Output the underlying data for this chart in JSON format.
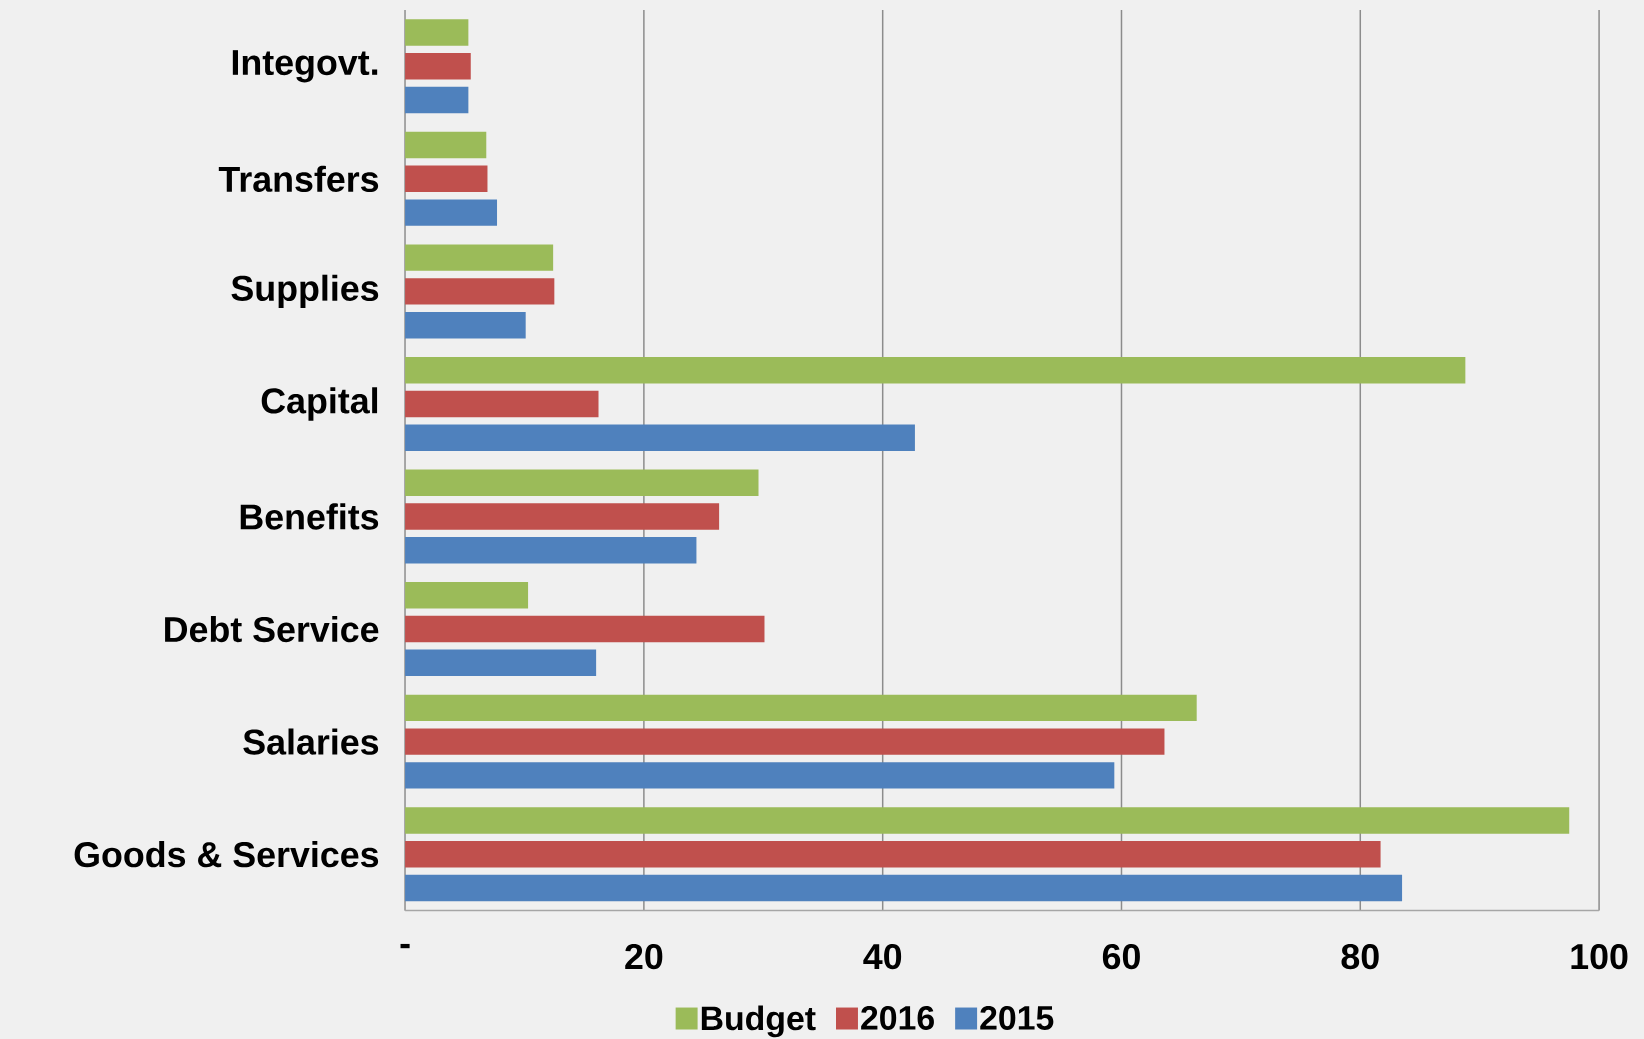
{
  "chart_data": {
    "type": "bar",
    "orientation": "horizontal",
    "categories": [
      "Integovt.",
      "Transfers",
      "Supplies",
      "Capital",
      "Benefits",
      "Debt Service",
      "Salaries",
      "Goods & Services"
    ],
    "series": [
      {
        "name": "Budget",
        "color": "#9bbb59",
        "values": [
          5.3,
          6.8,
          12.4,
          88.8,
          29.6,
          10.3,
          66.3,
          97.5
        ]
      },
      {
        "name": "2016",
        "color": "#c0504d",
        "values": [
          5.5,
          6.9,
          12.5,
          16.2,
          26.3,
          30.1,
          63.6,
          81.7
        ]
      },
      {
        "name": "2015",
        "color": "#4f81bd",
        "values": [
          5.3,
          7.7,
          10.1,
          42.7,
          24.4,
          16.0,
          59.4,
          83.5
        ]
      }
    ],
    "xlim": [
      0,
      100
    ],
    "xticks": [
      {
        "value": 0,
        "label": "-"
      },
      20,
      40,
      60,
      80,
      100
    ],
    "grid": "x",
    "legend": "bottom"
  }
}
